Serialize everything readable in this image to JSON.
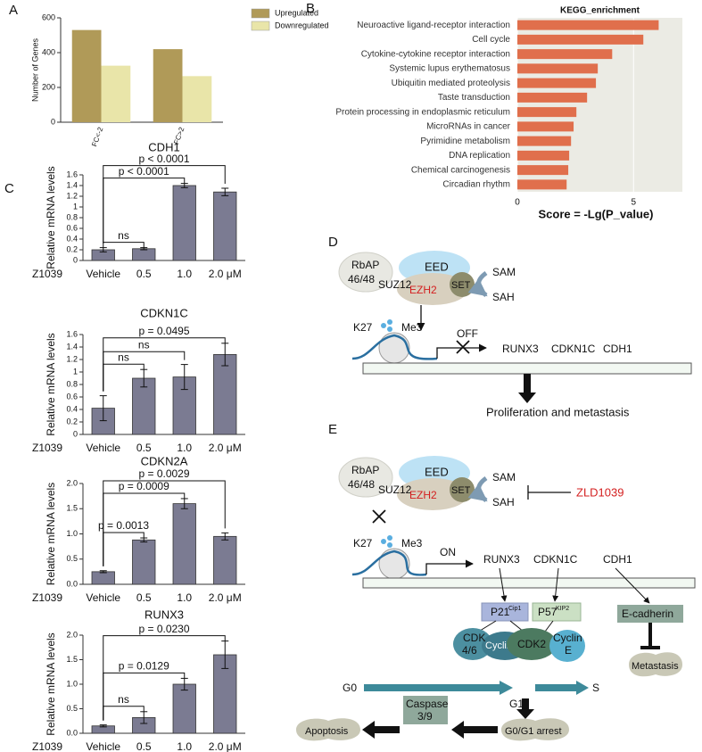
{
  "panel_labels": {
    "a": "A",
    "b": "B",
    "c": "C",
    "d": "D",
    "e": "E"
  },
  "chart_data": [
    {
      "type": "grouped_bar",
      "y_label": "Number of Genes",
      "categories": [
        "FC<-2",
        "FC>2"
      ],
      "series": [
        {
          "name": "Upregulated",
          "color": "#b09a58",
          "values": [
            530,
            420
          ]
        },
        {
          "name": "Downregulated",
          "color": "#e9e5a9",
          "values": [
            325,
            265
          ]
        }
      ],
      "ylim": [
        0,
        600
      ],
      "yticks": [
        0,
        200,
        400,
        600
      ]
    },
    {
      "type": "hbar",
      "title": "KEGG_enrichment",
      "x_label": "Score = -Lg(P_value)",
      "categories": [
        "Neuroactive ligand-receptor interaction",
        "Cell cycle",
        "Cytokine-cytokine receptor interaction",
        "Systemic lupus erythematosus",
        "Ubiquitin mediated proteolysis",
        "Taste transduction",
        "Protein processing in endoplasmic reticulum",
        "MicroRNAs in cancer",
        "Pyrimidine metabolism",
        "DNA replication",
        "Chemical carcinogenesis",
        "Circadian rhythm"
      ],
      "values": [
        6.08,
        5.42,
        4.08,
        3.46,
        3.38,
        3.0,
        2.54,
        2.42,
        2.31,
        2.23,
        2.19,
        2.12
      ],
      "color": "#e06f4c",
      "xlim": [
        0,
        7.1
      ],
      "xticks": [
        0,
        5
      ],
      "grid": true
    },
    {
      "type": "bar_error",
      "title": "CDH1",
      "y_label": "Relative mRNA levels",
      "x_prefix": "Z1039",
      "categories": [
        "Vehicle",
        "0.5",
        "1.0",
        "2.0 μM"
      ],
      "values": [
        0.2,
        0.22,
        1.4,
        1.28
      ],
      "errors": [
        0.04,
        0.02,
        0.04,
        0.07
      ],
      "color": "#7b7b92",
      "ylim": [
        0,
        1.6
      ],
      "yticks": [
        0,
        0.2,
        0.4,
        0.6,
        0.8,
        1,
        1.2,
        1.4,
        1.6
      ],
      "comparisons": [
        {
          "from": 0,
          "to": 1,
          "label": "ns"
        },
        {
          "from": 0,
          "to": 2,
          "label": "p < 0.0001"
        },
        {
          "from": 0,
          "to": 3,
          "label": "p < 0.0001"
        }
      ]
    },
    {
      "type": "bar_error",
      "title": "CDKN1C",
      "y_label": "Relative mRNA levels",
      "x_prefix": "Z1039",
      "categories": [
        "Vehicle",
        "0.5",
        "1.0",
        "2.0 μM"
      ],
      "values": [
        0.42,
        0.9,
        0.92,
        1.28
      ],
      "errors": [
        0.2,
        0.14,
        0.2,
        0.18
      ],
      "color": "#7b7b92",
      "ylim": [
        0,
        1.6
      ],
      "yticks": [
        0,
        0.2,
        0.4,
        0.6,
        0.8,
        1,
        1.2,
        1.4,
        1.6
      ],
      "comparisons": [
        {
          "from": 0,
          "to": 1,
          "label": "ns"
        },
        {
          "from": 0,
          "to": 2,
          "label": "ns"
        },
        {
          "from": 0,
          "to": 3,
          "label": "p = 0.0495"
        }
      ]
    },
    {
      "type": "bar_error",
      "title": "CDKN2A",
      "y_label": "Relative mRNA levels",
      "x_prefix": "Z1039",
      "categories": [
        "Vehicle",
        "0.5",
        "1.0",
        "2.0 μM"
      ],
      "values": [
        0.25,
        0.88,
        1.6,
        0.95
      ],
      "errors": [
        0.02,
        0.04,
        0.1,
        0.07
      ],
      "color": "#7b7b92",
      "ylim": [
        0,
        2
      ],
      "yticks": [
        {
          "value": 0,
          "label": "0.0"
        },
        0.5,
        {
          "value": 1,
          "label": "1.0"
        },
        1.5,
        {
          "value": 2,
          "label": "2.0"
        }
      ],
      "comparisons": [
        {
          "from": 0,
          "to": 1,
          "label": "p = 0.0013"
        },
        {
          "from": 0,
          "to": 2,
          "label": "p = 0.0009"
        },
        {
          "from": 0,
          "to": 3,
          "label": "p = 0.0029"
        }
      ]
    },
    {
      "type": "bar_error",
      "title": "RUNX3",
      "y_label": "Relative mRNA levels",
      "x_prefix": "Z1039",
      "categories": [
        "Vehicle",
        "0.5",
        "1.0",
        "2.0 μM"
      ],
      "values": [
        0.15,
        0.32,
        1.0,
        1.6
      ],
      "errors": [
        0.02,
        0.12,
        0.12,
        0.28
      ],
      "color": "#7b7b92",
      "ylim": [
        0,
        2
      ],
      "yticks": [
        {
          "value": 0,
          "label": "0.0"
        },
        0.5,
        {
          "value": 1,
          "label": "1.0"
        },
        1.5,
        {
          "value": 2,
          "label": "2.0"
        }
      ],
      "comparisons": [
        {
          "from": 0,
          "to": 1,
          "label": "ns"
        },
        {
          "from": 0,
          "to": 2,
          "label": "p = 0.0129"
        },
        {
          "from": 0,
          "to": 3,
          "label": "p = 0.0230"
        }
      ]
    }
  ],
  "diagram_d": {
    "rbap": "RbAP",
    "rbap_sub": "46/48",
    "suz12": "SUZ12",
    "eed": "EED",
    "ezh2": "EZH2",
    "set": "SET",
    "sam": "SAM",
    "sah": "SAH",
    "k27": "K27",
    "me3": "Me3",
    "off": "OFF",
    "gene_1": "RUNX3",
    "gene_2": "CDKN1C",
    "gene_3": "CDH1",
    "outcome": "Proliferation and metastasis"
  },
  "diagram_e": {
    "rbap": "RbAP",
    "rbap_sub": "46/48",
    "suz12": "SUZ12",
    "eed": "EED",
    "ezh2": "EZH2",
    "set": "SET",
    "sam": "SAM",
    "sah": "SAH",
    "inhibitor": "ZLD1039",
    "k27": "K27",
    "me3": "Me3",
    "on": "ON",
    "gene_1": "RUNX3",
    "gene_2": "CDKN1C",
    "gene_3": "CDH1",
    "p21": "P21",
    "p21_sup": "Cip1",
    "p57": "P57",
    "p57_sup": "KIP2",
    "e_cadherin": "E-cadherin",
    "cdk46": "CDK",
    "cdk46_sub": "4/6",
    "cyclin_d": "CyclinD",
    "cdk2": "CDK2",
    "cyclin_e": "Cyclin",
    "cyclin_e_sub": "E",
    "g0": "G0",
    "g1": "G1",
    "s": "S",
    "metastasis": "Metastasis",
    "apoptosis": "Apoptosis",
    "caspase": "Caspase",
    "caspase_sub": "3/9",
    "arrest": "G0/G1 arrest"
  }
}
